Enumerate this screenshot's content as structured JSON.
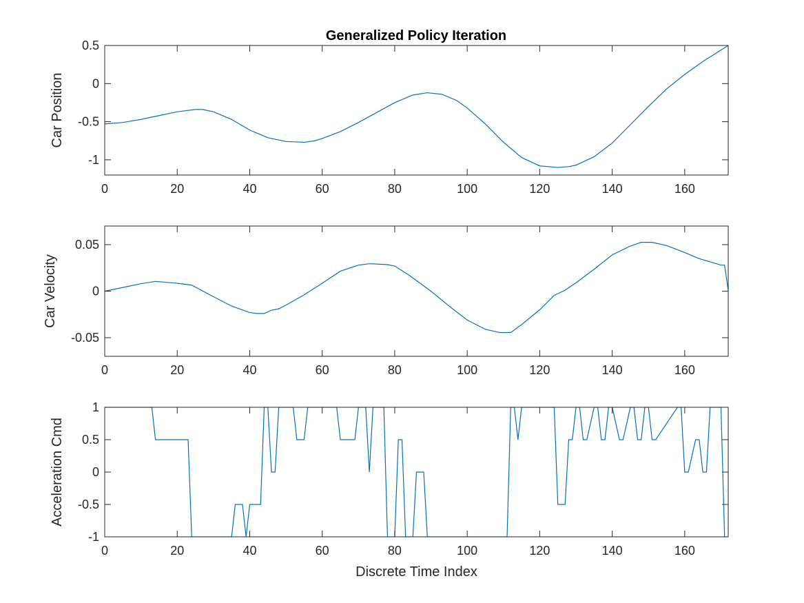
{
  "figure": {
    "title": "Generalized Policy Iteration",
    "line_color": "#0072bd",
    "axis_color": "#262626",
    "background": "#ffffff"
  },
  "chart_data": [
    {
      "type": "line",
      "title": "Generalized Policy Iteration",
      "xlabel": "",
      "ylabel": "Car Position",
      "xlim": [
        0,
        172
      ],
      "ylim": [
        -1.2,
        0.5
      ],
      "xticks": [
        0,
        20,
        40,
        60,
        80,
        100,
        120,
        140,
        160
      ],
      "yticks": [
        -1,
        -0.5,
        0,
        0.5
      ],
      "ytick_labels": [
        "-1",
        "-0.5",
        "0",
        "0.5"
      ],
      "grid": false,
      "series": [
        {
          "name": "",
          "x": [
            0,
            5,
            10,
            15,
            20,
            25,
            27,
            30,
            35,
            40,
            45,
            50,
            55,
            58,
            60,
            65,
            70,
            75,
            80,
            85,
            89,
            93,
            97,
            100,
            105,
            110,
            115,
            120,
            125,
            128,
            130,
            135,
            140,
            145,
            150,
            155,
            160,
            165,
            170,
            172
          ],
          "y": [
            -0.53,
            -0.51,
            -0.47,
            -0.42,
            -0.37,
            -0.34,
            -0.34,
            -0.37,
            -0.47,
            -0.61,
            -0.71,
            -0.76,
            -0.77,
            -0.75,
            -0.72,
            -0.63,
            -0.51,
            -0.38,
            -0.25,
            -0.15,
            -0.12,
            -0.14,
            -0.22,
            -0.32,
            -0.53,
            -0.77,
            -0.97,
            -1.08,
            -1.1,
            -1.09,
            -1.07,
            -0.96,
            -0.78,
            -0.54,
            -0.3,
            -0.07,
            0.12,
            0.29,
            0.44,
            0.5
          ]
        }
      ]
    },
    {
      "type": "line",
      "title": "",
      "xlabel": "",
      "ylabel": "Car Velocity",
      "xlim": [
        0,
        172
      ],
      "ylim": [
        -0.07,
        0.07
      ],
      "xticks": [
        0,
        20,
        40,
        60,
        80,
        100,
        120,
        140,
        160
      ],
      "yticks": [
        -0.05,
        0,
        0.05
      ],
      "ytick_labels": [
        "-0.05",
        "0",
        "0.05"
      ],
      "grid": false,
      "series": [
        {
          "name": "",
          "x": [
            0,
            5,
            10,
            14,
            20,
            24,
            30,
            35,
            40,
            42,
            44,
            46,
            48,
            50,
            55,
            60,
            65,
            70,
            73,
            76,
            78,
            80,
            84,
            90,
            95,
            100,
            105,
            109,
            112,
            115,
            120,
            124,
            127,
            130,
            135,
            140,
            145,
            148,
            151,
            155,
            160,
            164,
            167,
            170,
            171,
            172
          ],
          "y": [
            0.0,
            0.004,
            0.008,
            0.0105,
            0.0085,
            0.0065,
            -0.006,
            -0.016,
            -0.023,
            -0.024,
            -0.024,
            -0.0205,
            -0.019,
            -0.015,
            -0.004,
            0.0085,
            0.0215,
            0.028,
            0.0295,
            0.029,
            0.0285,
            0.027,
            0.017,
            0.0,
            -0.016,
            -0.031,
            -0.041,
            -0.0445,
            -0.0445,
            -0.036,
            -0.02,
            -0.0045,
            0.001,
            0.009,
            0.0235,
            0.039,
            0.0485,
            0.0525,
            0.0525,
            0.049,
            0.0415,
            0.035,
            0.0315,
            0.028,
            0.028,
            0.001
          ]
        }
      ]
    },
    {
      "type": "line",
      "title": "",
      "xlabel": "Discrete Time Index",
      "ylabel": "Acceleration Cmd",
      "xlim": [
        0,
        172
      ],
      "ylim": [
        -1,
        1
      ],
      "xticks": [
        0,
        20,
        40,
        60,
        80,
        100,
        120,
        140,
        160
      ],
      "yticks": [
        -1,
        -0.5,
        0,
        0.5,
        1
      ],
      "ytick_labels": [
        "-1",
        "-0.5",
        "0",
        "0.5",
        "1"
      ],
      "grid": false,
      "series": [
        {
          "name": "",
          "x": [
            0,
            13,
            14,
            23,
            24,
            35,
            36,
            38,
            39,
            40,
            42,
            43,
            44,
            45,
            46,
            47,
            48,
            49,
            52,
            53,
            55,
            56,
            64,
            65,
            69,
            70,
            72,
            73,
            74,
            77,
            78,
            79,
            80,
            81,
            82,
            83,
            84,
            85,
            86,
            88,
            89,
            90,
            111,
            112,
            113,
            114,
            115,
            124,
            125,
            127,
            128,
            129,
            130,
            131,
            132,
            133,
            135,
            136,
            137,
            138,
            139,
            140,
            142,
            143,
            145,
            146,
            147,
            148,
            149,
            150,
            151,
            152,
            158,
            159,
            160,
            161,
            163,
            164,
            165,
            166,
            167,
            170,
            171,
            172
          ],
          "y": [
            1,
            1,
            0.5,
            0.5,
            -1,
            -1,
            -0.5,
            -0.5,
            -1,
            -0.5,
            -0.5,
            -0.5,
            1,
            1,
            0,
            0,
            1,
            1,
            1,
            0.5,
            0.5,
            1,
            1,
            0.5,
            0.5,
            1,
            1,
            0,
            1,
            1,
            -1,
            -1,
            -1,
            0.5,
            0.5,
            -1,
            -1,
            -1,
            0,
            0,
            -1,
            -1,
            -1,
            1,
            1,
            0.5,
            1,
            1,
            -0.5,
            -0.5,
            0.5,
            0.5,
            1,
            1,
            0.5,
            0.5,
            1,
            1,
            0.5,
            0.5,
            1,
            1,
            0.5,
            0.5,
            1,
            1,
            0.5,
            0.5,
            1,
            1,
            0.5,
            0.5,
            1,
            1,
            0,
            0,
            0.5,
            0.5,
            0,
            0,
            1,
            1,
            -1,
            -1
          ]
        }
      ]
    }
  ]
}
